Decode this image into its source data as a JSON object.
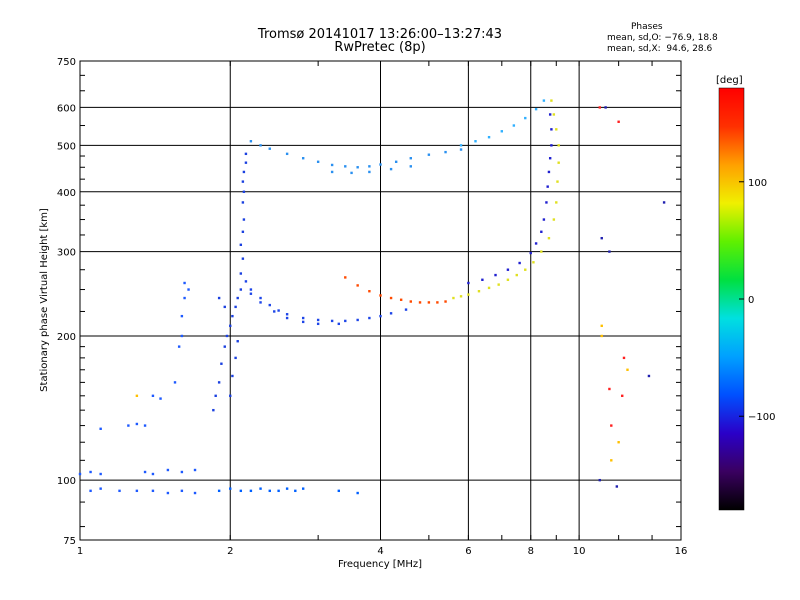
{
  "header": {
    "title_line1": "Tromsø 20141017 13:26:00–13:27:43",
    "title_line2": "RwPretec (8p)"
  },
  "phases_box": {
    "heading": "Phases",
    "line_o": "mean, sd,O: −76.9, 18.8",
    "line_x": "mean, sd,X:  94.6, 28.6"
  },
  "chart_data": {
    "type": "scatter",
    "xlabel": "Frequency [MHz]",
    "ylabel": "Stationary phase Virtual Height [km]",
    "x_scale": "log",
    "y_scale": "log",
    "xlim": [
      1,
      16
    ],
    "ylim": [
      75,
      750
    ],
    "x_ticks": [
      1,
      2,
      4,
      6,
      8,
      10,
      16
    ],
    "x_tick_labels": [
      "1",
      "2",
      "4",
      "6",
      "8",
      "10",
      "16"
    ],
    "y_ticks": [
      75,
      100,
      200,
      300,
      400,
      500,
      600,
      750
    ],
    "y_tick_labels": [
      "75",
      "100",
      "200",
      "300",
      "400",
      "500",
      "600",
      "750"
    ],
    "grid": true,
    "colorbar": {
      "label": "[deg]",
      "range": [
        -180,
        180
      ],
      "ticks": [
        100,
        0,
        -100
      ],
      "tick_labels": [
        "100",
        "0",
        "−100"
      ],
      "stops": [
        "#000000",
        "#3a0060",
        "#2a00c8",
        "#0050ff",
        "#00a0ff",
        "#00e0e0",
        "#00e040",
        "#60f000",
        "#f0f000",
        "#ffa000",
        "#ff3000",
        "#ff0000"
      ]
    },
    "series": [
      {
        "color": "#1e5aff",
        "points": [
          [
            1.0,
            103
          ],
          [
            1.05,
            104
          ],
          [
            1.1,
            103
          ],
          [
            1.05,
            95
          ],
          [
            1.1,
            96
          ],
          [
            1.2,
            95
          ],
          [
            1.3,
            95
          ],
          [
            1.4,
            95
          ],
          [
            1.5,
            94
          ],
          [
            1.6,
            95
          ],
          [
            1.7,
            94
          ],
          [
            1.35,
            104
          ],
          [
            1.4,
            103
          ],
          [
            1.5,
            105
          ],
          [
            1.6,
            104
          ],
          [
            1.7,
            105
          ],
          [
            1.25,
            130
          ],
          [
            1.3,
            131
          ],
          [
            1.35,
            130
          ],
          [
            1.1,
            128
          ],
          [
            1.4,
            150
          ],
          [
            1.45,
            148
          ],
          [
            1.55,
            160
          ],
          [
            1.58,
            190
          ],
          [
            1.6,
            200
          ],
          [
            1.6,
            220
          ],
          [
            1.62,
            240
          ],
          [
            1.62,
            258
          ],
          [
            1.65,
            250
          ]
        ]
      },
      {
        "color": "#0060ff",
        "points": [
          [
            1.9,
            95
          ],
          [
            2.0,
            96
          ],
          [
            2.1,
            95
          ],
          [
            2.2,
            95
          ],
          [
            2.3,
            96
          ],
          [
            2.4,
            95
          ],
          [
            2.5,
            95
          ],
          [
            2.6,
            96
          ],
          [
            2.7,
            95
          ],
          [
            2.8,
            96
          ],
          [
            3.3,
            95
          ],
          [
            3.6,
            94
          ]
        ]
      },
      {
        "color": "#1a40e0",
        "points": [
          [
            1.85,
            140
          ],
          [
            1.87,
            150
          ],
          [
            1.9,
            160
          ],
          [
            1.92,
            175
          ],
          [
            1.95,
            190
          ],
          [
            1.97,
            200
          ],
          [
            2.0,
            210
          ],
          [
            2.02,
            220
          ],
          [
            2.05,
            230
          ],
          [
            2.07,
            240
          ],
          [
            2.1,
            250
          ],
          [
            2.1,
            270
          ],
          [
            2.12,
            290
          ],
          [
            2.1,
            310
          ],
          [
            2.12,
            330
          ],
          [
            2.13,
            350
          ],
          [
            2.12,
            380
          ],
          [
            2.13,
            400
          ],
          [
            2.12,
            420
          ],
          [
            2.13,
            440
          ],
          [
            2.15,
            460
          ],
          [
            2.15,
            480
          ],
          [
            2.0,
            150
          ],
          [
            2.02,
            165
          ],
          [
            2.05,
            180
          ],
          [
            2.07,
            195
          ],
          [
            1.95,
            230
          ],
          [
            1.9,
            240
          ]
        ]
      },
      {
        "color": "#1e46e8",
        "points": [
          [
            2.15,
            260
          ],
          [
            2.2,
            250
          ],
          [
            2.3,
            240
          ],
          [
            2.4,
            232
          ],
          [
            2.5,
            226
          ],
          [
            2.6,
            222
          ],
          [
            2.8,
            218
          ],
          [
            3.0,
            216
          ],
          [
            3.2,
            215
          ],
          [
            3.4,
            215
          ],
          [
            3.6,
            216
          ],
          [
            3.8,
            218
          ],
          [
            4.0,
            220
          ],
          [
            4.2,
            223
          ],
          [
            4.5,
            227
          ],
          [
            2.2,
            245
          ],
          [
            2.3,
            235
          ],
          [
            2.45,
            225
          ],
          [
            2.6,
            218
          ],
          [
            2.8,
            214
          ],
          [
            3.0,
            212
          ],
          [
            3.3,
            212
          ]
        ]
      },
      {
        "color": "#2a90f0",
        "points": [
          [
            2.2,
            510
          ],
          [
            2.3,
            500
          ],
          [
            2.4,
            492
          ],
          [
            2.6,
            480
          ],
          [
            2.8,
            470
          ],
          [
            3.0,
            462
          ],
          [
            3.2,
            455
          ],
          [
            3.4,
            452
          ],
          [
            3.6,
            450
          ],
          [
            3.8,
            452
          ],
          [
            4.0,
            456
          ],
          [
            4.3,
            462
          ],
          [
            4.6,
            470
          ],
          [
            5.0,
            478
          ],
          [
            5.4,
            484
          ],
          [
            5.8,
            490
          ],
          [
            3.2,
            440
          ],
          [
            3.5,
            438
          ],
          [
            3.8,
            440
          ],
          [
            4.2,
            446
          ],
          [
            4.6,
            452
          ]
        ]
      },
      {
        "color": "#ff4a00",
        "points": [
          [
            3.4,
            265
          ],
          [
            3.6,
            255
          ],
          [
            3.8,
            248
          ],
          [
            4.0,
            243
          ],
          [
            4.2,
            240
          ],
          [
            4.4,
            238
          ],
          [
            4.6,
            236
          ],
          [
            4.8,
            235
          ],
          [
            5.0,
            235
          ],
          [
            5.2,
            235
          ],
          [
            5.4,
            236
          ]
        ]
      },
      {
        "color": "#e0e020",
        "points": [
          [
            5.6,
            240
          ],
          [
            5.8,
            242
          ],
          [
            6.0,
            244
          ],
          [
            6.3,
            248
          ],
          [
            6.6,
            252
          ],
          [
            6.9,
            256
          ],
          [
            7.2,
            262
          ],
          [
            7.5,
            268
          ],
          [
            7.8,
            275
          ],
          [
            8.1,
            285
          ],
          [
            8.4,
            300
          ],
          [
            8.7,
            320
          ],
          [
            8.9,
            350
          ],
          [
            9.0,
            380
          ],
          [
            9.05,
            420
          ],
          [
            9.1,
            460
          ],
          [
            9.1,
            500
          ],
          [
            9.0,
            540
          ],
          [
            8.9,
            580
          ],
          [
            8.8,
            620
          ]
        ]
      },
      {
        "color": "#2020d0",
        "points": [
          [
            6.0,
            258
          ],
          [
            6.4,
            262
          ],
          [
            6.8,
            268
          ],
          [
            7.2,
            275
          ],
          [
            7.6,
            284
          ],
          [
            8.0,
            298
          ],
          [
            8.2,
            312
          ],
          [
            8.4,
            330
          ],
          [
            8.5,
            350
          ],
          [
            8.6,
            380
          ],
          [
            8.65,
            410
          ],
          [
            8.7,
            440
          ],
          [
            8.75,
            470
          ],
          [
            8.8,
            500
          ],
          [
            8.8,
            540
          ],
          [
            8.75,
            580
          ]
        ]
      },
      {
        "color": "#30b0ff",
        "points": [
          [
            5.8,
            500
          ],
          [
            6.2,
            510
          ],
          [
            6.6,
            520
          ],
          [
            7.0,
            535
          ],
          [
            7.4,
            550
          ],
          [
            7.8,
            570
          ],
          [
            8.2,
            595
          ],
          [
            8.5,
            620
          ]
        ]
      },
      {
        "color": "#ff2020",
        "points": [
          [
            11.0,
            600
          ],
          [
            12.0,
            560
          ],
          [
            12.3,
            180
          ],
          [
            11.5,
            155
          ],
          [
            12.2,
            150
          ],
          [
            11.6,
            130
          ]
        ]
      },
      {
        "color": "#ffc000",
        "points": [
          [
            11.1,
            210
          ],
          [
            11.1,
            200
          ],
          [
            11.6,
            110
          ],
          [
            12.0,
            120
          ],
          [
            12.5,
            170
          ],
          [
            1.3,
            150
          ]
        ]
      },
      {
        "color": "#2020b0",
        "points": [
          [
            11.3,
            600
          ],
          [
            11.1,
            320
          ],
          [
            11.5,
            300
          ],
          [
            13.8,
            165
          ],
          [
            14.8,
            380
          ],
          [
            11.9,
            97
          ],
          [
            11.0,
            100
          ]
        ]
      }
    ]
  }
}
